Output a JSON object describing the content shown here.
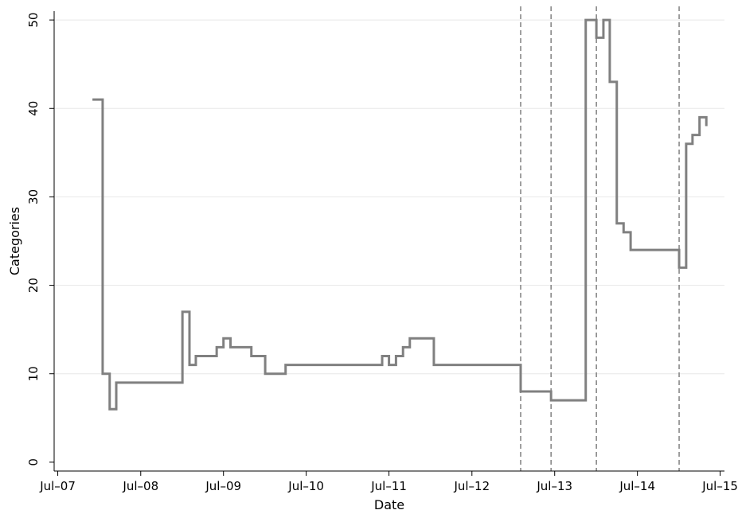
{
  "chart_data": {
    "type": "line",
    "step": true,
    "title": "",
    "xlabel": "Date",
    "ylabel": "Categories",
    "x_axis_type": "date",
    "xlim": [
      "2007-06-15",
      "2015-07-20"
    ],
    "ylim": [
      -1,
      51
    ],
    "xticks": [
      "2007-07-01",
      "2008-07-01",
      "2009-07-01",
      "2010-07-01",
      "2011-07-01",
      "2012-07-01",
      "2013-07-01",
      "2014-07-01",
      "2015-07-01"
    ],
    "xtick_labels": [
      "Jul–07",
      "Jul–08",
      "Jul–09",
      "Jul–10",
      "Jul–11",
      "Jul–12",
      "Jul–13",
      "Jul–14",
      "Jul–15"
    ],
    "yticks": [
      0,
      10,
      20,
      30,
      40,
      50
    ],
    "ytick_labels": [
      "0",
      "10",
      "20",
      "30",
      "40",
      "50"
    ],
    "grid": "horizontal",
    "line_color": "#808080",
    "reference_line_color": "#808080",
    "vertical_reference_lines": [
      "2013-02-01",
      "2013-06-15",
      "2014-01-01",
      "2015-01-01"
    ],
    "series": [
      {
        "x": [
          "2007-12-01",
          "2008-01-15",
          "2008-02-15",
          "2008-03-15",
          "2009-01-01",
          "2009-02-01",
          "2009-03-01",
          "2009-06-01",
          "2009-07-01",
          "2009-08-01",
          "2009-11-01",
          "2010-01-01",
          "2010-04-01",
          "2011-06-01",
          "2011-07-01",
          "2011-08-01",
          "2011-09-01",
          "2011-10-01",
          "2012-01-15",
          "2013-02-01",
          "2013-06-15",
          "2013-11-15",
          "2014-01-01",
          "2014-02-01",
          "2014-03-01",
          "2014-04-01",
          "2014-05-01",
          "2014-06-01",
          "2015-01-01",
          "2015-02-01",
          "2015-03-01",
          "2015-04-01",
          "2015-05-01"
        ],
        "y": [
          41,
          10,
          6,
          9,
          17,
          11,
          12,
          13,
          14,
          13,
          12,
          10,
          11,
          12,
          11,
          12,
          13,
          14,
          11,
          8,
          7,
          50,
          48,
          50,
          43,
          27,
          26,
          24,
          22,
          36,
          37,
          39,
          38
        ]
      }
    ]
  }
}
